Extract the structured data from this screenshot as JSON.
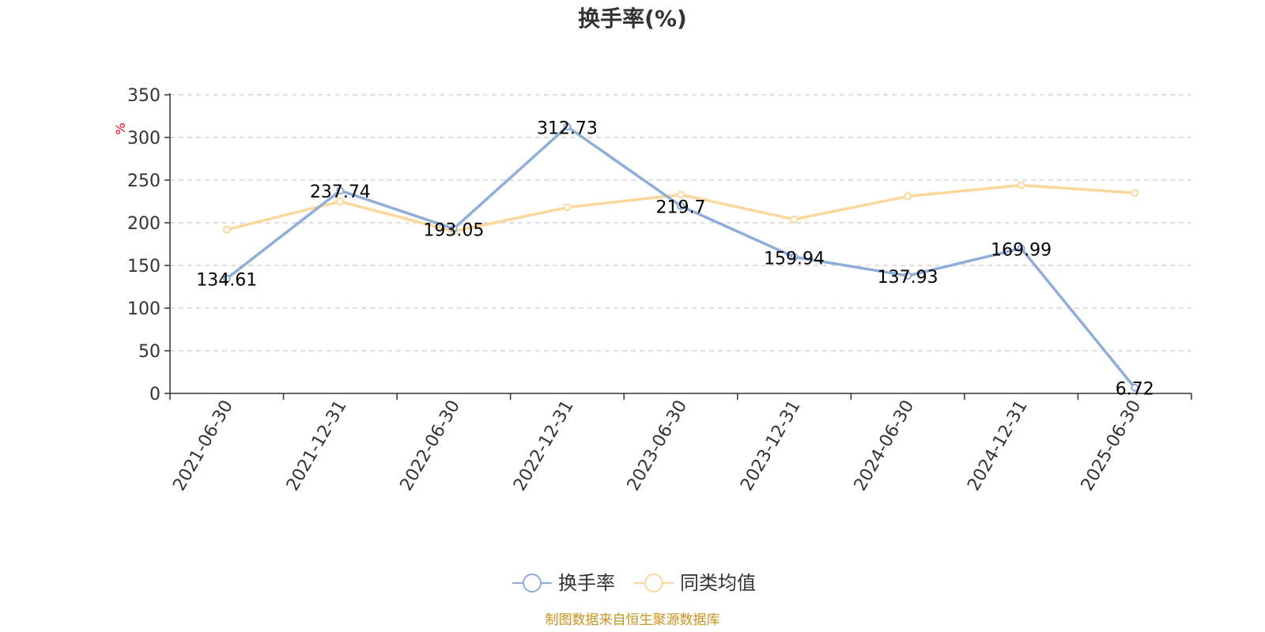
{
  "chart_data": {
    "type": "line",
    "title": "换手率(%)",
    "ylabel": "%",
    "categories": [
      "2021-06-30",
      "2021-12-31",
      "2022-06-30",
      "2022-12-31",
      "2023-06-30",
      "2023-12-31",
      "2024-06-30",
      "2024-12-31",
      "2025-06-30"
    ],
    "ylim": [
      0,
      350
    ],
    "yticks": [
      "0",
      "50",
      "100",
      "150",
      "200",
      "250",
      "300",
      "350"
    ],
    "grid": true,
    "legend_position": "bottom",
    "series": [
      {
        "name": "换手率",
        "color": "#8eaed9",
        "values": [
          134.61,
          237.74,
          193.05,
          312.73,
          219.7,
          159.94,
          137.93,
          169.99,
          6.72
        ],
        "labels": [
          "134.61",
          "237.74",
          "193.05",
          "312.73",
          "219.7",
          "159.94",
          "137.93",
          "169.99",
          "6.72"
        ]
      },
      {
        "name": "同类均值",
        "color": "#fad89b",
        "values": [
          192,
          225,
          190,
          218,
          233,
          204,
          231,
          244,
          235
        ]
      }
    ]
  },
  "source": "制图数据来自恒生聚源数据库"
}
